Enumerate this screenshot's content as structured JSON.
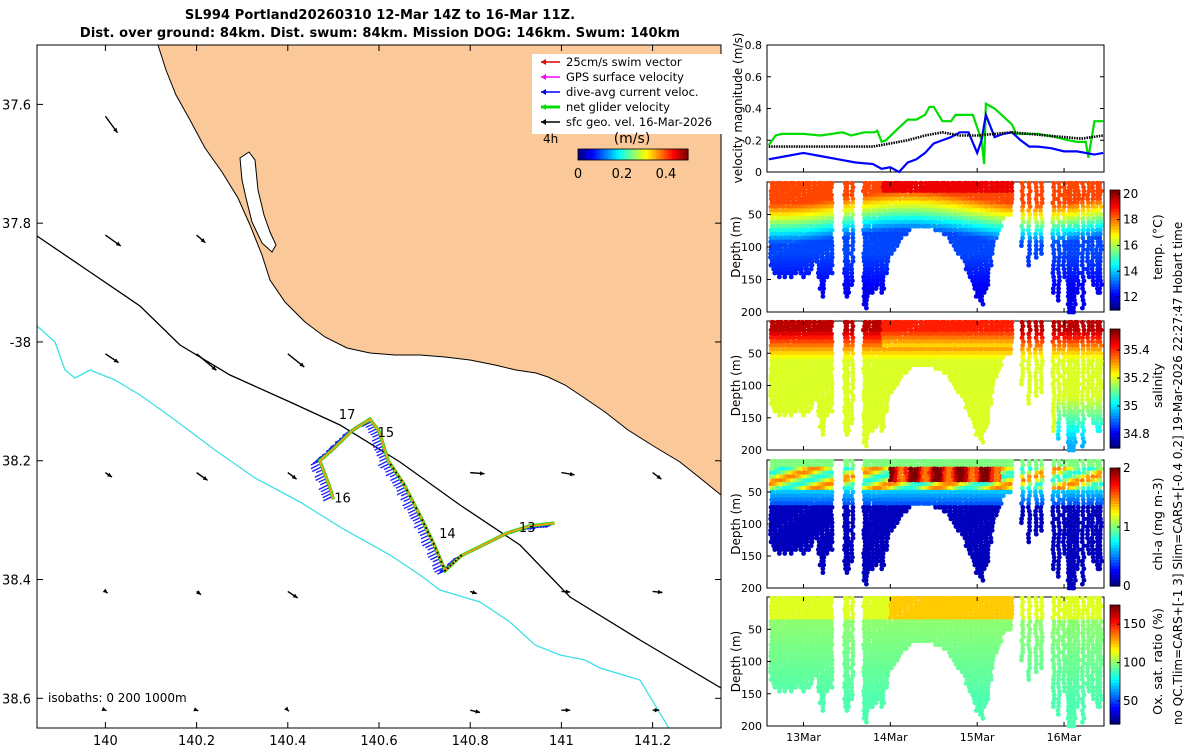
{
  "figure": {
    "title_line1": "SL994 Portland20260310 12-Mar 14Z to 16-Mar 11Z.",
    "title_line2": "Dist. over ground: 84km. Dist. swum: 84km. Mission DOG: 146km. Swum: 140km",
    "side_note1": "no QC.Tlim=CARS+[-1 3] Slim=CARS+[-0.4 0.2] 19-Mar-2026 22:27:47 Hobart time",
    "colors": {
      "land": "#fbc999",
      "coast": "#000000",
      "isobath_1000": "#3ee0e8",
      "track": "#f0a020"
    }
  },
  "chart_data": [
    {
      "type": "scatter",
      "id": "map",
      "title": "glider track map",
      "xlim": [
        139.85,
        141.35
      ],
      "ylim": [
        38.65,
        37.5
      ],
      "xticks": [
        140,
        140.2,
        140.4,
        140.6,
        140.8,
        141,
        141.2
      ],
      "xtick_labels": [
        "140",
        "140.2",
        "140.4",
        "140.6",
        "140.8",
        "141",
        "141.2"
      ],
      "yticks": [
        37.6,
        37.8,
        38.0,
        38.2,
        38.4,
        38.6
      ],
      "ytick_labels": [
        "37.6",
        "37.8",
        "-38",
        "38.2",
        "38.4",
        "38.6"
      ],
      "legend": [
        {
          "label": "25cm/s swim vector",
          "color": "#e00000"
        },
        {
          "label": "GPS surface velocity",
          "color": "#ff00ff"
        },
        {
          "label": "dive-avg current veloc.",
          "color": "#0000ff"
        },
        {
          "label": "net glider velocity",
          "color": "#00dd00"
        },
        {
          "label": "sfc geo. vel. 16-Mar-2026",
          "color": "#000000"
        }
      ],
      "legend_note": "4h",
      "colorbar": {
        "label": "(m/s)",
        "range": [
          0,
          0.5
        ],
        "ticks": [
          "0",
          "0.2",
          "0.4"
        ]
      },
      "day_labels": [
        {
          "text": "17",
          "lon": 140.53,
          "lat": 38.13
        },
        {
          "text": "15",
          "lon": 140.615,
          "lat": 38.16
        },
        {
          "text": "16",
          "lon": 140.52,
          "lat": 38.27
        },
        {
          "text": "14",
          "lon": 140.75,
          "lat": 38.33
        },
        {
          "text": "13",
          "lon": 140.925,
          "lat": 38.32
        }
      ],
      "track": [
        [
          140.985,
          38.305
        ],
        [
          140.93,
          38.31
        ],
        [
          140.88,
          38.322
        ],
        [
          140.82,
          38.345
        ],
        [
          140.78,
          38.36
        ],
        [
          140.745,
          38.385
        ],
        [
          140.72,
          38.34
        ],
        [
          140.695,
          38.3
        ],
        [
          140.655,
          38.24
        ],
        [
          140.62,
          38.2
        ],
        [
          140.6,
          38.15
        ],
        [
          140.58,
          38.13
        ],
        [
          140.54,
          38.15
        ],
        [
          140.5,
          38.18
        ],
        [
          140.47,
          38.2
        ],
        [
          140.49,
          38.24
        ],
        [
          140.5,
          38.265
        ]
      ],
      "isobath_label": "isobaths: 0   200  1000m",
      "geo_vectors": [
        [
          140.0,
          37.62,
          0.55,
          -0.75
        ],
        [
          140.0,
          37.82,
          0.7,
          -0.5
        ],
        [
          140.0,
          38.02,
          0.6,
          -0.4
        ],
        [
          140.0,
          38.22,
          0.3,
          -0.2
        ],
        [
          140.0,
          38.42,
          0.1,
          -0.08
        ],
        [
          140.0,
          38.62,
          0.05,
          -0.02
        ],
        [
          140.2,
          37.82,
          0.4,
          -0.35
        ],
        [
          140.2,
          38.02,
          0.9,
          -0.75
        ],
        [
          140.2,
          38.22,
          0.5,
          -0.35
        ],
        [
          140.2,
          38.42,
          0.2,
          -0.15
        ],
        [
          140.2,
          38.62,
          0.08,
          -0.03
        ],
        [
          140.4,
          38.02,
          0.75,
          -0.6
        ],
        [
          140.4,
          38.22,
          0.4,
          -0.3
        ],
        [
          140.4,
          38.42,
          0.45,
          -0.3
        ],
        [
          140.4,
          38.62,
          0.05,
          -0.05
        ],
        [
          140.8,
          38.22,
          0.65,
          -0.05
        ],
        [
          140.8,
          38.42,
          0.3,
          -0.1
        ],
        [
          140.8,
          38.62,
          0.45,
          -0.1
        ],
        [
          141.0,
          38.22,
          0.6,
          -0.1
        ],
        [
          141.0,
          38.42,
          0.4,
          -0.03
        ],
        [
          141.0,
          38.62,
          0.4,
          0.0
        ],
        [
          141.2,
          38.22,
          0.4,
          -0.3
        ],
        [
          141.2,
          38.42,
          0.45,
          -0.05
        ],
        [
          141.2,
          38.62,
          0.3,
          0.0
        ]
      ]
    },
    {
      "type": "line",
      "id": "velocity",
      "ylabel": "velocity magnitude (m/s)",
      "ylim": [
        0,
        0.8
      ],
      "yticks": [
        0,
        0.2,
        0.4,
        0.6,
        0.8
      ],
      "ytick_labels": [
        "0",
        "0.2",
        "0.4",
        "0.6",
        "0.8"
      ],
      "xlim": [
        12.58,
        16.46
      ],
      "series": [
        {
          "name": "net glider velocity",
          "color": "#00dd00",
          "x": [
            12.6,
            12.68,
            12.75,
            12.85,
            13.0,
            13.2,
            13.45,
            13.55,
            13.7,
            13.82,
            13.85,
            13.9,
            13.95,
            14.1,
            14.2,
            14.3,
            14.4,
            14.45,
            14.5,
            14.6,
            14.7,
            14.75,
            14.8,
            14.95,
            15.05,
            15.08,
            15.1,
            15.2,
            15.3,
            15.4,
            15.45,
            15.55,
            15.7,
            15.9,
            16.05,
            16.15,
            16.25,
            16.28,
            16.35,
            16.45
          ],
          "y": [
            0.17,
            0.23,
            0.24,
            0.24,
            0.24,
            0.23,
            0.25,
            0.23,
            0.25,
            0.25,
            0.26,
            0.19,
            0.2,
            0.28,
            0.33,
            0.33,
            0.36,
            0.41,
            0.41,
            0.32,
            0.32,
            0.36,
            0.36,
            0.36,
            0.2,
            0.05,
            0.43,
            0.4,
            0.35,
            0.3,
            0.24,
            0.24,
            0.24,
            0.22,
            0.2,
            0.19,
            0.19,
            0.09,
            0.32,
            0.32
          ]
        },
        {
          "name": "dive-avg current veloc.",
          "color": "#0000ff",
          "x": [
            12.6,
            12.8,
            13.0,
            13.2,
            13.4,
            13.6,
            13.8,
            13.9,
            14.0,
            14.1,
            14.2,
            14.3,
            14.4,
            14.5,
            14.6,
            14.7,
            14.8,
            14.9,
            15.0,
            15.05,
            15.1,
            15.2,
            15.3,
            15.4,
            15.5,
            15.6,
            15.7,
            15.85,
            16.0,
            16.15,
            16.25,
            16.35,
            16.45
          ],
          "y": [
            0.08,
            0.1,
            0.12,
            0.1,
            0.08,
            0.06,
            0.05,
            0.02,
            0.03,
            0.0,
            0.06,
            0.08,
            0.12,
            0.18,
            0.2,
            0.22,
            0.25,
            0.25,
            0.12,
            0.2,
            0.36,
            0.22,
            0.24,
            0.25,
            0.2,
            0.16,
            0.16,
            0.15,
            0.13,
            0.13,
            0.12,
            0.11,
            0.12
          ]
        },
        {
          "name": "sfc geo. vel.",
          "color": "#000000",
          "x": [
            12.6,
            12.8,
            13.0,
            13.2,
            13.4,
            13.6,
            13.8,
            14.0,
            14.2,
            14.4,
            14.6,
            14.8,
            15.0,
            15.2,
            15.4,
            15.6,
            15.8,
            16.0,
            16.2,
            16.45
          ],
          "y": [
            0.16,
            0.16,
            0.16,
            0.16,
            0.16,
            0.16,
            0.16,
            0.18,
            0.2,
            0.23,
            0.25,
            0.23,
            0.23,
            0.24,
            0.25,
            0.24,
            0.23,
            0.22,
            0.21,
            0.23
          ]
        }
      ]
    },
    {
      "type": "scatter",
      "id": "temperature",
      "ylabel": "Depth (m)",
      "clabel": "temp. (°C)",
      "ylim": [
        200,
        0
      ],
      "yticks": [
        50,
        100,
        150,
        200
      ],
      "ytick_labels": [
        "50",
        "100",
        "150",
        "200"
      ],
      "crange": [
        11,
        20.3
      ],
      "cticks": [
        12,
        14,
        16,
        18,
        20
      ],
      "ctick_labels": [
        "12",
        "14",
        "16",
        "18",
        "20"
      ],
      "surface_value": 18.5,
      "bottom_value": 12.8
    },
    {
      "type": "scatter",
      "id": "salinity",
      "ylabel": "Depth (m)",
      "clabel": "salinity",
      "ylim": [
        200,
        0
      ],
      "yticks": [
        50,
        100,
        150,
        200
      ],
      "ytick_labels": [
        "50",
        "100",
        "150",
        "200"
      ],
      "crange": [
        34.7,
        35.55
      ],
      "cticks": [
        34.8,
        35.0,
        35.2,
        35.4
      ],
      "ctick_labels": [
        "34.8",
        "35",
        "35.2",
        "35.4"
      ],
      "surface_value": 35.5,
      "bottom_value": 35.2
    },
    {
      "type": "scatter",
      "id": "chla",
      "ylabel": "Depth (m)",
      "clabel": "chl-a (mg m-3)",
      "ylim": [
        200,
        0
      ],
      "yticks": [
        50,
        100,
        150,
        200
      ],
      "ytick_labels": [
        "50",
        "100",
        "150",
        "200"
      ],
      "crange": [
        0,
        2
      ],
      "cticks": [
        0,
        1,
        2
      ],
      "ctick_labels": [
        "0",
        "1",
        "2"
      ],
      "surface_value": 1.1,
      "bottom_value": 0.15
    },
    {
      "type": "scatter",
      "id": "oxygen",
      "ylabel": "Depth (m)",
      "clabel": "Ox. sat. ratio (%)",
      "ylim": [
        200,
        0
      ],
      "yticks": [
        50,
        100,
        150,
        200
      ],
      "ytick_labels": [
        "50",
        "100",
        "150",
        "200"
      ],
      "crange": [
        20,
        175
      ],
      "cticks": [
        50,
        100,
        150
      ],
      "ctick_labels": [
        "50",
        "100",
        "150"
      ],
      "surface_value": 108,
      "bottom_value": 95,
      "xticks": [
        13,
        14,
        15,
        16
      ],
      "xtick_labels": [
        "13Mar",
        "14Mar",
        "15Mar",
        "16Mar"
      ]
    }
  ],
  "profiles": {
    "xlim": [
      12.58,
      16.46
    ],
    "dives": [
      [
        12.63,
        130
      ],
      [
        12.66,
        140
      ],
      [
        12.69,
        135
      ],
      [
        12.72,
        150
      ],
      [
        12.75,
        145
      ],
      [
        12.78,
        150
      ],
      [
        12.81,
        140
      ],
      [
        12.84,
        145
      ],
      [
        12.87,
        150
      ],
      [
        12.9,
        140
      ],
      [
        12.93,
        135
      ],
      [
        12.96,
        140
      ],
      [
        12.99,
        150
      ],
      [
        13.02,
        145
      ],
      [
        13.05,
        140
      ],
      [
        13.08,
        135
      ],
      [
        13.11,
        130
      ],
      [
        13.14,
        125
      ],
      [
        13.17,
        150
      ],
      [
        13.2,
        165
      ],
      [
        13.23,
        180
      ],
      [
        13.26,
        150
      ],
      [
        13.29,
        145
      ],
      [
        13.32,
        140
      ],
      [
        13.48,
        175
      ],
      [
        13.51,
        180
      ],
      [
        13.56,
        160
      ],
      [
        13.7,
        190
      ],
      [
        13.73,
        195
      ],
      [
        13.76,
        175
      ],
      [
        13.8,
        170
      ],
      [
        13.83,
        165
      ],
      [
        13.86,
        160
      ],
      [
        13.89,
        175
      ],
      [
        13.92,
        165
      ],
      [
        13.95,
        140
      ],
      [
        13.98,
        125
      ],
      [
        14.01,
        115
      ],
      [
        14.04,
        105
      ],
      [
        14.07,
        100
      ],
      [
        14.1,
        95
      ],
      [
        14.13,
        90
      ],
      [
        14.16,
        85
      ],
      [
        14.19,
        80
      ],
      [
        14.22,
        75
      ],
      [
        14.25,
        72
      ],
      [
        14.28,
        70
      ],
      [
        14.31,
        70
      ],
      [
        14.34,
        68
      ],
      [
        14.37,
        68
      ],
      [
        14.4,
        68
      ],
      [
        14.43,
        70
      ],
      [
        14.46,
        70
      ],
      [
        14.49,
        72
      ],
      [
        14.52,
        74
      ],
      [
        14.55,
        76
      ],
      [
        14.58,
        78
      ],
      [
        14.61,
        80
      ],
      [
        14.64,
        84
      ],
      [
        14.67,
        88
      ],
      [
        14.7,
        92
      ],
      [
        14.73,
        98
      ],
      [
        14.76,
        104
      ],
      [
        14.79,
        110
      ],
      [
        14.82,
        118
      ],
      [
        14.85,
        126
      ],
      [
        14.88,
        136
      ],
      [
        14.91,
        146
      ],
      [
        14.94,
        156
      ],
      [
        14.97,
        166
      ],
      [
        15.0,
        176
      ],
      [
        15.03,
        186
      ],
      [
        15.06,
        190
      ],
      [
        15.09,
        175
      ],
      [
        15.12,
        160
      ],
      [
        15.15,
        130
      ],
      [
        15.18,
        110
      ],
      [
        15.21,
        90
      ],
      [
        15.24,
        80
      ],
      [
        15.27,
        70
      ],
      [
        15.3,
        60
      ],
      [
        15.33,
        55
      ],
      [
        15.36,
        50
      ],
      [
        15.39,
        50
      ],
      [
        15.52,
        100
      ],
      [
        15.6,
        130
      ],
      [
        15.68,
        120
      ],
      [
        15.74,
        115
      ],
      [
        15.88,
        170
      ],
      [
        15.94,
        185
      ],
      [
        16.0,
        150
      ],
      [
        16.05,
        200
      ],
      [
        16.08,
        200
      ],
      [
        16.12,
        200
      ],
      [
        16.16,
        170
      ],
      [
        16.22,
        195
      ],
      [
        16.28,
        150
      ],
      [
        16.33,
        160
      ],
      [
        16.38,
        170
      ],
      [
        16.42,
        175
      ]
    ]
  }
}
